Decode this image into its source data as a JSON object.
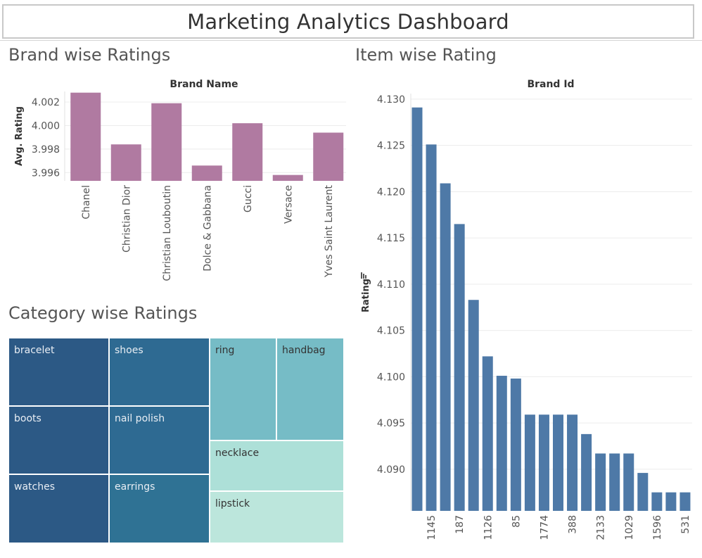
{
  "dashboard": {
    "title": "Marketing Analytics Dashboard"
  },
  "brand_chart": {
    "section_title": "Brand wise Ratings",
    "color": "#b07aa1"
  },
  "item_chart": {
    "section_title": "Item wise Rating",
    "color": "#4e79a7"
  },
  "category_chart": {
    "section_title": "Category wise Ratings",
    "items": [
      {
        "label": "bracelet",
        "color": "#2c5985"
      },
      {
        "label": "boots",
        "color": "#2c5985"
      },
      {
        "label": "watches",
        "color": "#2c5985"
      },
      {
        "label": "shoes",
        "color": "#2e6a92"
      },
      {
        "label": "nail polish",
        "color": "#2e6a92"
      },
      {
        "label": "earrings",
        "color": "#2f7294"
      },
      {
        "label": "ring",
        "color": "#76bcc6"
      },
      {
        "label": "handbag",
        "color": "#76bcc6"
      },
      {
        "label": "necklace",
        "color": "#ade0d8"
      },
      {
        "label": "lipstick",
        "color": "#bce6dc"
      }
    ]
  },
  "chart_data": [
    {
      "type": "bar",
      "title": "Brand Name",
      "xlabel": "",
      "ylabel": "Avg. Rating",
      "categories": [
        "Chanel",
        "Christian Dior",
        "Christian Louboutin",
        "Dolce & Gabbana",
        "Gucci",
        "Versace",
        "Yves Saint Laurent"
      ],
      "values": [
        4.0028,
        3.9984,
        4.0019,
        3.9966,
        4.0002,
        3.9958,
        3.9994
      ],
      "yticks": [
        "3.996",
        "3.998",
        "4.000",
        "4.002"
      ],
      "ylim": [
        3.9953,
        4.0029
      ],
      "grid": true
    },
    {
      "type": "bar",
      "title": "Brand Id",
      "xlabel": "",
      "ylabel": "Rating",
      "categories": [
        "",
        "1145",
        "",
        "187",
        "",
        "1126",
        "",
        "85",
        "",
        "1774",
        "",
        "388",
        "",
        "2133",
        "",
        "1029",
        "",
        "1596",
        "",
        "531"
      ],
      "values": [
        4.1291,
        4.1251,
        4.1209,
        4.1165,
        4.1083,
        4.1022,
        4.1001,
        4.0998,
        4.0959,
        4.0959,
        4.0959,
        4.0959,
        4.0938,
        4.0917,
        4.0917,
        4.0917,
        4.0896,
        4.0875,
        4.0875,
        4.0875
      ],
      "yticks": [
        "4.090",
        "4.095",
        "4.100",
        "4.105",
        "4.110",
        "4.115",
        "4.120",
        "4.125",
        "4.130"
      ],
      "ylim": [
        4.0855,
        4.1306
      ],
      "grid": true
    },
    {
      "type": "treemap",
      "categories": [
        "bracelet",
        "boots",
        "watches",
        "shoes",
        "nail polish",
        "earrings",
        "ring",
        "handbag",
        "necklace",
        "lipstick"
      ]
    }
  ]
}
